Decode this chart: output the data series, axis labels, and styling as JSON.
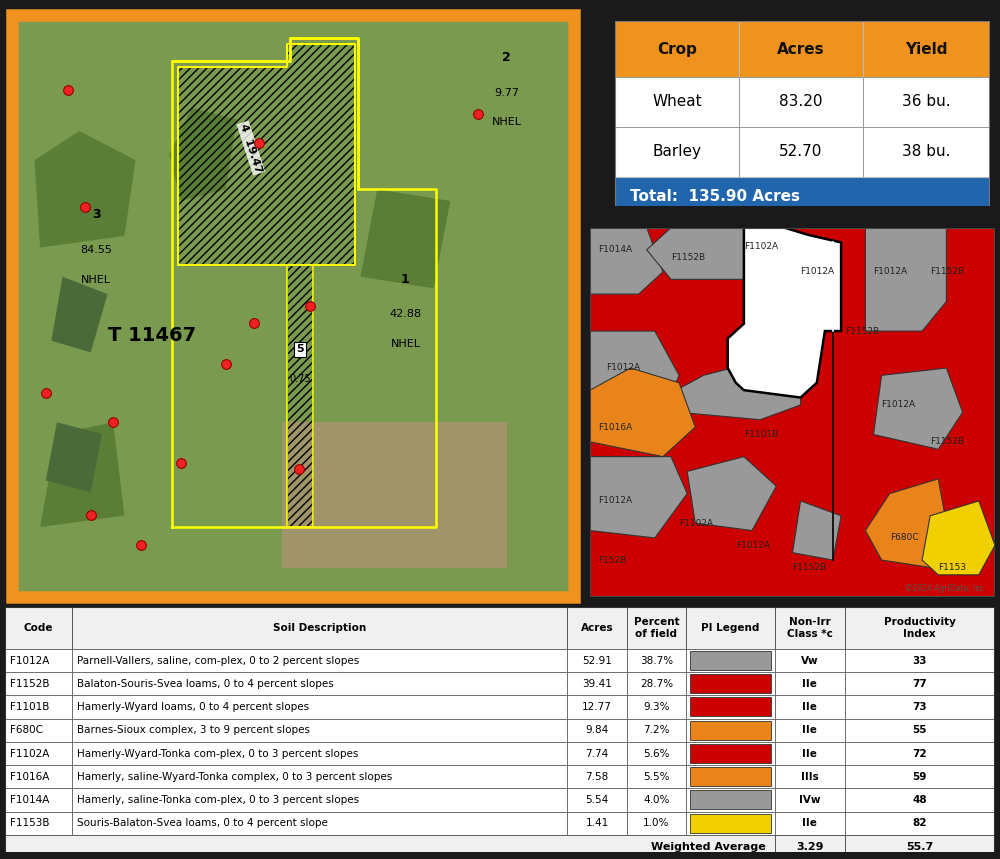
{
  "background_color": "#1a1a1a",
  "crop_table": {
    "headers": [
      "Crop",
      "Acres",
      "Yield"
    ],
    "rows": [
      [
        "Wheat",
        "83.20",
        "36 bu."
      ],
      [
        "Barley",
        "52.70",
        "38 bu."
      ]
    ],
    "total": "Total:  135.90 Acres",
    "header_bg": "#f0921e",
    "header_color": "#111111",
    "total_bg": "#2166ac",
    "total_color": "#ffffff",
    "row_bg": "#ffffff",
    "border_color": "#888888"
  },
  "soil_table": {
    "headers": [
      "Code",
      "Soil Description",
      "Acres",
      "Percent\nof field",
      "PI Legend",
      "Non-Irr\nClass *c",
      "Productivity\nIndex"
    ],
    "rows": [
      [
        "F1012A",
        "Parnell-Vallers, saline, com-plex, 0 to 2 percent slopes",
        "52.91",
        "38.7%",
        "gray",
        "Vw",
        "33"
      ],
      [
        "F1152B",
        "Balaton-Souris-Svea loams, 0 to 4 percent slopes",
        "39.41",
        "28.7%",
        "red",
        "IIe",
        "77"
      ],
      [
        "F1101B",
        "Hamerly-Wyard loams, 0 to 4 percent slopes",
        "12.77",
        "9.3%",
        "red",
        "IIe",
        "73"
      ],
      [
        "F680C",
        "Barnes-Sioux complex, 3 to 9 percent slopes",
        "9.84",
        "7.2%",
        "orange",
        "IIe",
        "55"
      ],
      [
        "F1102A",
        "Hamerly-Wyard-Tonka com-plex, 0 to 3 percent slopes",
        "7.74",
        "5.6%",
        "red",
        "IIe",
        "72"
      ],
      [
        "F1016A",
        "Hamerly, saline-Wyard-Tonka complex, 0 to 3 percent slopes",
        "7.58",
        "5.5%",
        "orange",
        "IIIs",
        "59"
      ],
      [
        "F1014A",
        "Hamerly, saline-Tonka com-plex, 0 to 3 percent slopes",
        "5.54",
        "4.0%",
        "gray",
        "IVw",
        "48"
      ],
      [
        "F1153B",
        "Souris-Balaton-Svea loams, 0 to 4 percent slope",
        "1.41",
        "1.0%",
        "yellow",
        "IIe",
        "82"
      ]
    ],
    "weighted_avg_pi": "3.29",
    "weighted_avg_prod": "55.7"
  },
  "map_border_color": "#f0921e",
  "soil_colors": {
    "red": "#cc0000",
    "orange": "#e8841a",
    "gray": "#999999",
    "yellow": "#f0d000",
    "lgray": "#c0c0c0"
  }
}
